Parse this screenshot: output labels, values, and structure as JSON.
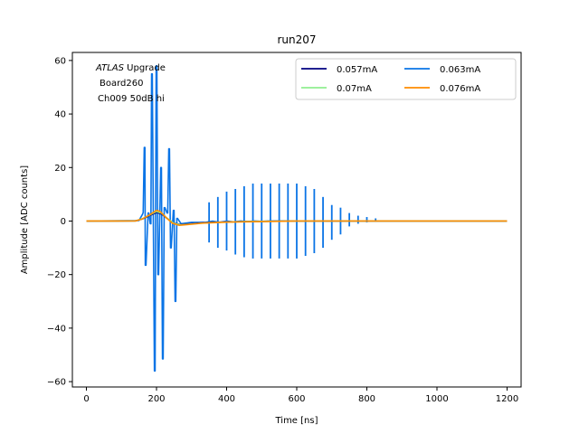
{
  "chart_data": {
    "type": "line",
    "title": "run207",
    "xlabel": "Time [ns]",
    "ylabel": "Amplitude [ADC counts]",
    "xlim": [
      -40,
      1240
    ],
    "ylim": [
      -62,
      63
    ],
    "xticks": [
      0,
      200,
      400,
      600,
      800,
      1000,
      1200
    ],
    "yticks": [
      -60,
      -40,
      -20,
      0,
      20,
      40,
      60
    ],
    "grid": false,
    "legend_position": "top-right",
    "legend_columns": 2,
    "annotation": {
      "italic": "ATLAS",
      "line1_rest": " Upgrade",
      "line2": "Board260",
      "line3": "Ch009 50dB hi"
    },
    "series": [
      {
        "name": "0.057mA",
        "color": "#000080",
        "x": [
          0,
          140,
          160,
          180,
          200,
          215,
          230,
          250,
          270,
          300,
          350,
          450,
          600,
          800,
          1000,
          1200
        ],
        "y": [
          0,
          0.05,
          0.8,
          2.0,
          3.2,
          2.6,
          1.0,
          -0.8,
          -1.3,
          -1.0,
          -0.5,
          -0.2,
          0,
          0,
          0,
          0
        ]
      },
      {
        "name": "0.063mA",
        "color": "#0a74e6",
        "x": [
          0,
          150,
          160,
          162,
          165,
          167,
          168,
          170,
          176,
          178,
          182,
          184,
          186,
          188,
          194,
          196,
          199,
          201,
          204,
          206,
          212,
          214,
          217,
          219,
          222,
          224,
          230,
          232,
          235,
          237,
          240,
          242,
          248,
          250,
          253,
          255,
          258,
          260,
          270,
          300,
          340,
          360,
          380,
          400,
          420,
          440,
          460,
          480,
          500,
          520,
          540,
          560,
          580,
          600,
          620,
          640,
          660,
          680,
          700,
          720,
          740,
          760,
          780,
          800,
          1200
        ],
        "y": [
          0,
          0.2,
          2.5,
          3.2,
          27.5,
          27.5,
          -16.5,
          -16.5,
          3,
          3,
          -1,
          -1,
          55,
          55,
          -56,
          -56,
          58,
          58,
          -20,
          -20,
          20,
          20,
          -51.5,
          -51.5,
          5,
          5,
          3,
          3,
          27,
          27,
          -10,
          -10,
          4,
          4,
          -30,
          -30,
          1,
          1,
          -1,
          -0.5,
          -0.5,
          0,
          -0.5,
          0,
          -0.3,
          0,
          -0.2,
          0,
          -0.1,
          0,
          0,
          0,
          0,
          0,
          0,
          0,
          0,
          0,
          0,
          0,
          0,
          0,
          0,
          0,
          0
        ]
      },
      {
        "name": "0.07mA",
        "color": "#90ee90",
        "x": [
          0,
          140,
          160,
          180,
          200,
          215,
          230,
          250,
          270,
          300,
          350,
          450,
          600,
          800,
          1000,
          1200
        ],
        "y": [
          0,
          0.05,
          0.9,
          2.2,
          3.6,
          2.9,
          1.1,
          -0.9,
          -1.4,
          -1.1,
          -0.6,
          -0.2,
          0,
          0,
          0,
          0
        ]
      },
      {
        "name": "0.076mA",
        "color": "#ff8c00",
        "x": [
          0,
          140,
          160,
          180,
          200,
          210,
          225,
          245,
          265,
          290,
          330,
          400,
          500,
          600,
          700,
          800,
          1000,
          1200
        ],
        "y": [
          0,
          0.05,
          0.8,
          2.3,
          4.0,
          3.6,
          1.6,
          -0.8,
          -1.6,
          -1.3,
          -0.8,
          -0.4,
          -0.2,
          0,
          0,
          0,
          0,
          0
        ]
      }
    ],
    "ringing": {
      "color": "#0a74e6",
      "x": [
        350,
        375,
        400,
        425,
        450,
        475,
        500,
        525,
        550,
        575,
        600,
        625,
        650,
        675,
        700,
        725,
        750,
        775,
        800,
        825
      ],
      "upper": [
        7,
        9,
        11,
        12,
        13,
        14,
        14,
        14,
        14,
        14,
        14,
        13,
        12,
        9,
        6,
        5,
        3,
        2,
        1.5,
        1
      ],
      "lower": [
        -8,
        -10,
        -11,
        -12.5,
        -13.5,
        -14,
        -14,
        -14,
        -14,
        -14,
        -14,
        -13,
        -12,
        -10,
        -7,
        -5,
        -2,
        -1,
        -0.5,
        -0.3
      ]
    }
  }
}
